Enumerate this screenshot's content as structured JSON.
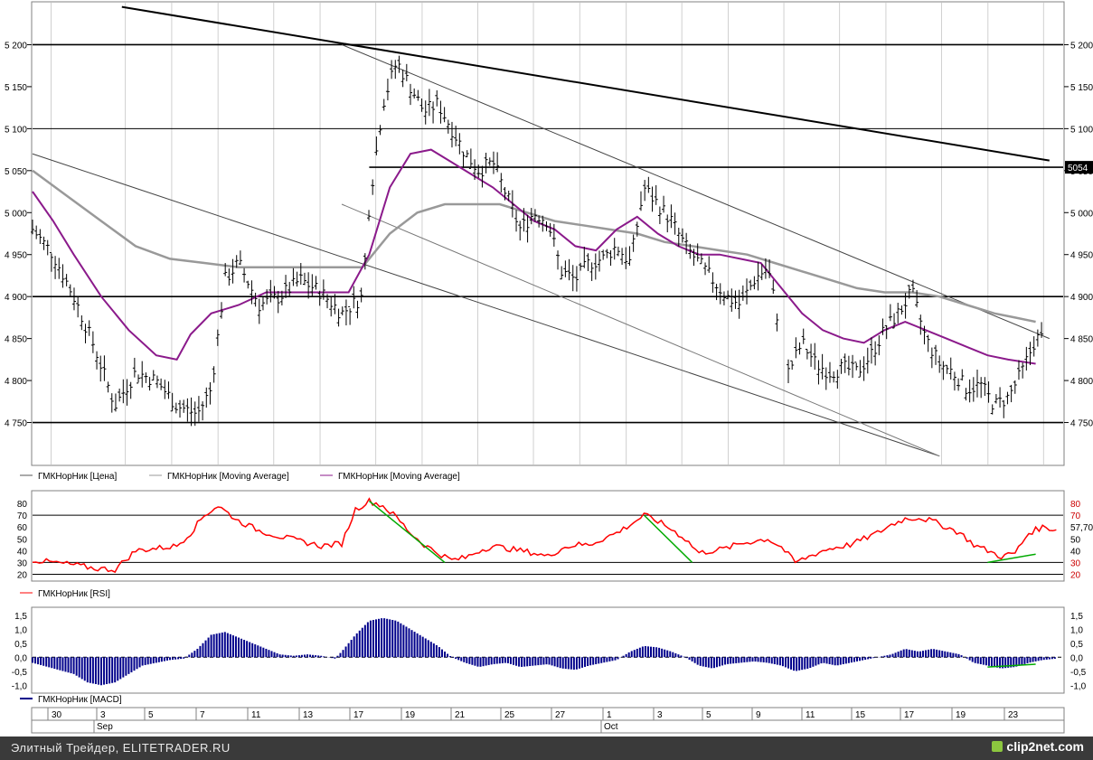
{
  "price_panel": {
    "y_ticks": [
      "5 200",
      "5 150",
      "5 100",
      "5 050",
      "5 000",
      "4 950",
      "4 900",
      "4 850",
      "4 800",
      "4 750"
    ],
    "last_value_label": "5054",
    "legend": [
      {
        "label": "ГМКНорНик [Цена]",
        "color": "#555555"
      },
      {
        "label": "ГМКНорНик [Moving Average]",
        "color": "#999999"
      },
      {
        "label": "ГМКНорНик [Moving Average]",
        "color": "#8b1a8b"
      }
    ]
  },
  "rsi_panel": {
    "y_ticks": [
      "80",
      "70",
      "60",
      "50",
      "40",
      "30",
      "20"
    ],
    "right_labels": [
      "80",
      "70",
      "57,70",
      "50",
      "40",
      "30",
      "20"
    ],
    "legend": {
      "label": "ГМКНорНик [RSI]",
      "color": "#ff0000"
    }
  },
  "macd_panel": {
    "y_ticks": [
      "1,5",
      "1,0",
      "0,5",
      "0,0",
      "-0,5",
      "-1,0"
    ],
    "legend": {
      "label": "ГМКНорНик [MACD]",
      "color": "#00008b"
    }
  },
  "x_axis": {
    "day_labels": [
      "30",
      "3",
      "5",
      "7",
      "11",
      "13",
      "17",
      "19",
      "21",
      "25",
      "27",
      "1",
      "3",
      "5",
      "9",
      "11",
      "15",
      "17",
      "19",
      "23"
    ],
    "month_labels": [
      "Sep",
      "Oct"
    ]
  },
  "footer": {
    "left_text": "Элитный Трейдер, ELITETRADER.RU",
    "right_text": "clip2net.com"
  },
  "colors": {
    "price_bars": "#000000",
    "ma_long": "#999999",
    "ma_short": "#8b1a8b",
    "rsi": "#ff0000",
    "macd_fill": "#00008b",
    "trend_green": "#00aa00"
  },
  "chart_data": [
    {
      "type": "bar",
      "subtype": "ohlc",
      "y_unit": "price",
      "ylim": [
        4700,
        5250
      ],
      "horizontal_levels": [
        5200,
        5100,
        5054,
        4900,
        4750
      ],
      "price": [
        [
          0,
          4980
        ],
        [
          3,
          4950
        ],
        [
          6,
          4900
        ],
        [
          9,
          4840
        ],
        [
          12,
          4770
        ],
        [
          15,
          4810
        ],
        [
          18,
          4800
        ],
        [
          21,
          4770
        ],
        [
          24,
          4760
        ],
        [
          26,
          4790
        ],
        [
          28,
          4920
        ],
        [
          30,
          4940
        ],
        [
          33,
          4890
        ],
        [
          36,
          4900
        ],
        [
          39,
          4920
        ],
        [
          42,
          4905
        ],
        [
          45,
          4880
        ],
        [
          48,
          4900
        ],
        [
          49,
          5010
        ],
        [
          51,
          5130
        ],
        [
          53,
          5180
        ],
        [
          55,
          5150
        ],
        [
          57,
          5120
        ],
        [
          59,
          5130
        ],
        [
          61,
          5100
        ],
        [
          63,
          5070
        ],
        [
          65,
          5050
        ],
        [
          67,
          5060
        ],
        [
          69,
          5020
        ],
        [
          71,
          4980
        ],
        [
          73,
          5000
        ],
        [
          75,
          4990
        ],
        [
          77,
          4930
        ],
        [
          79,
          4920
        ],
        [
          81,
          4940
        ],
        [
          83,
          4945
        ],
        [
          85,
          4960
        ],
        [
          87,
          4940
        ],
        [
          89,
          5030
        ],
        [
          91,
          5010
        ],
        [
          93,
          4990
        ],
        [
          95,
          4960
        ],
        [
          97,
          4940
        ],
        [
          99,
          4920
        ],
        [
          101,
          4900
        ],
        [
          103,
          4890
        ],
        [
          105,
          4920
        ],
        [
          107,
          4935
        ],
        [
          110,
          4810
        ],
        [
          112,
          4845
        ],
        [
          114,
          4820
        ],
        [
          116,
          4810
        ],
        [
          118,
          4815
        ],
        [
          120,
          4810
        ],
        [
          122,
          4830
        ],
        [
          124,
          4860
        ],
        [
          126,
          4880
        ],
        [
          128,
          4905
        ],
        [
          130,
          4850
        ],
        [
          132,
          4820
        ],
        [
          134,
          4810
        ],
        [
          136,
          4790
        ],
        [
          138,
          4795
        ],
        [
          140,
          4770
        ],
        [
          142,
          4780
        ],
        [
          144,
          4810
        ],
        [
          146,
          4850
        ]
      ],
      "ma_short": [
        [
          0,
          5025
        ],
        [
          3,
          4990
        ],
        [
          6,
          4950
        ],
        [
          10,
          4900
        ],
        [
          14,
          4860
        ],
        [
          18,
          4830
        ],
        [
          21,
          4825
        ],
        [
          23,
          4855
        ],
        [
          26,
          4880
        ],
        [
          30,
          4890
        ],
        [
          34,
          4905
        ],
        [
          38,
          4905
        ],
        [
          42,
          4905
        ],
        [
          46,
          4905
        ],
        [
          49,
          4950
        ],
        [
          52,
          5030
        ],
        [
          55,
          5070
        ],
        [
          58,
          5075
        ],
        [
          61,
          5060
        ],
        [
          64,
          5045
        ],
        [
          67,
          5030
        ],
        [
          70,
          5010
        ],
        [
          73,
          4990
        ],
        [
          76,
          4980
        ],
        [
          79,
          4960
        ],
        [
          82,
          4955
        ],
        [
          85,
          4980
        ],
        [
          88,
          4995
        ],
        [
          91,
          4975
        ],
        [
          94,
          4960
        ],
        [
          97,
          4950
        ],
        [
          100,
          4950
        ],
        [
          103,
          4945
        ],
        [
          106,
          4940
        ],
        [
          109,
          4910
        ],
        [
          112,
          4880
        ],
        [
          115,
          4860
        ],
        [
          118,
          4850
        ],
        [
          121,
          4845
        ],
        [
          124,
          4860
        ],
        [
          127,
          4870
        ],
        [
          130,
          4860
        ],
        [
          133,
          4850
        ],
        [
          136,
          4840
        ],
        [
          139,
          4830
        ],
        [
          142,
          4825
        ],
        [
          146,
          4820
        ]
      ],
      "ma_long": [
        [
          0,
          5050
        ],
        [
          5,
          5020
        ],
        [
          10,
          4990
        ],
        [
          15,
          4960
        ],
        [
          20,
          4945
        ],
        [
          25,
          4940
        ],
        [
          30,
          4935
        ],
        [
          35,
          4935
        ],
        [
          40,
          4935
        ],
        [
          45,
          4935
        ],
        [
          48,
          4935
        ],
        [
          52,
          4975
        ],
        [
          56,
          5000
        ],
        [
          60,
          5010
        ],
        [
          64,
          5010
        ],
        [
          68,
          5010
        ],
        [
          72,
          5000
        ],
        [
          76,
          4990
        ],
        [
          80,
          4985
        ],
        [
          84,
          4980
        ],
        [
          88,
          4975
        ],
        [
          92,
          4965
        ],
        [
          96,
          4960
        ],
        [
          100,
          4955
        ],
        [
          104,
          4950
        ],
        [
          108,
          4940
        ],
        [
          112,
          4930
        ],
        [
          116,
          4920
        ],
        [
          120,
          4910
        ],
        [
          124,
          4905
        ],
        [
          128,
          4905
        ],
        [
          132,
          4900
        ],
        [
          136,
          4890
        ],
        [
          140,
          4880
        ],
        [
          143,
          4875
        ],
        [
          146,
          4870
        ]
      ],
      "trendlines": [
        {
          "from": [
            13,
            5245
          ],
          "to": [
            148,
            5062
          ]
        },
        {
          "from": [
            45,
            5200
          ],
          "to": [
            148,
            4850
          ]
        },
        {
          "from": [
            0,
            5070
          ],
          "to": [
            132,
            4710
          ]
        },
        {
          "from": [
            45,
            5010
          ],
          "to": [
            132,
            4710
          ]
        }
      ]
    },
    {
      "type": "line",
      "name": "RSI",
      "ylim": [
        15,
        90
      ],
      "levels": [
        70,
        30
      ],
      "last_value": 57.7,
      "values": [
        [
          0,
          32
        ],
        [
          3,
          30
        ],
        [
          6,
          28
        ],
        [
          9,
          25
        ],
        [
          12,
          24
        ],
        [
          15,
          40
        ],
        [
          18,
          42
        ],
        [
          21,
          44
        ],
        [
          23,
          55
        ],
        [
          25,
          70
        ],
        [
          27,
          78
        ],
        [
          30,
          65
        ],
        [
          33,
          57
        ],
        [
          36,
          52
        ],
        [
          39,
          48
        ],
        [
          42,
          44
        ],
        [
          45,
          46
        ],
        [
          47,
          75
        ],
        [
          49,
          82
        ],
        [
          51,
          78
        ],
        [
          53,
          68
        ],
        [
          55,
          55
        ],
        [
          57,
          45
        ],
        [
          59,
          38
        ],
        [
          61,
          32
        ],
        [
          63,
          34
        ],
        [
          65,
          40
        ],
        [
          67,
          44
        ],
        [
          69,
          42
        ],
        [
          71,
          40
        ],
        [
          73,
          38
        ],
        [
          75,
          35
        ],
        [
          77,
          42
        ],
        [
          79,
          45
        ],
        [
          81,
          45
        ],
        [
          83,
          50
        ],
        [
          85,
          55
        ],
        [
          87,
          62
        ],
        [
          89,
          70
        ],
        [
          91,
          65
        ],
        [
          93,
          58
        ],
        [
          95,
          50
        ],
        [
          97,
          38
        ],
        [
          99,
          40
        ],
        [
          101,
          42
        ],
        [
          103,
          46
        ],
        [
          105,
          48
        ],
        [
          107,
          50
        ],
        [
          109,
          43
        ],
        [
          111,
          30
        ],
        [
          113,
          35
        ],
        [
          115,
          40
        ],
        [
          117,
          43
        ],
        [
          119,
          45
        ],
        [
          121,
          50
        ],
        [
          123,
          55
        ],
        [
          125,
          62
        ],
        [
          127,
          67
        ],
        [
          129,
          68
        ],
        [
          131,
          65
        ],
        [
          133,
          60
        ],
        [
          135,
          55
        ],
        [
          137,
          45
        ],
        [
          139,
          40
        ],
        [
          141,
          35
        ],
        [
          143,
          38
        ],
        [
          145,
          55
        ],
        [
          147,
          60
        ],
        [
          149,
          57.7
        ]
      ],
      "trendlines": [
        {
          "from": [
            49,
            82
          ],
          "to": [
            60,
            30
          ]
        },
        {
          "from": [
            89,
            70
          ],
          "to": [
            96,
            30
          ]
        },
        {
          "from": [
            139,
            30
          ],
          "to": [
            146,
            37
          ]
        }
      ]
    },
    {
      "type": "area",
      "name": "MACD",
      "ylim": [
        -1.25,
        1.75
      ],
      "values": [
        [
          0,
          -0.2
        ],
        [
          3,
          -0.4
        ],
        [
          6,
          -0.6
        ],
        [
          8,
          -0.9
        ],
        [
          10,
          -1.0
        ],
        [
          12,
          -0.9
        ],
        [
          14,
          -0.6
        ],
        [
          16,
          -0.3
        ],
        [
          18,
          -0.2
        ],
        [
          20,
          -0.1
        ],
        [
          22,
          -0.05
        ],
        [
          24,
          0.3
        ],
        [
          26,
          0.8
        ],
        [
          28,
          0.9
        ],
        [
          30,
          0.7
        ],
        [
          32,
          0.5
        ],
        [
          34,
          0.3
        ],
        [
          36,
          0.1
        ],
        [
          38,
          0.05
        ],
        [
          40,
          0.1
        ],
        [
          42,
          0.05
        ],
        [
          44,
          -0.05
        ],
        [
          45,
          0.2
        ],
        [
          47,
          0.8
        ],
        [
          49,
          1.3
        ],
        [
          51,
          1.4
        ],
        [
          53,
          1.3
        ],
        [
          55,
          1.0
        ],
        [
          57,
          0.7
        ],
        [
          59,
          0.4
        ],
        [
          61,
          0.0
        ],
        [
          63,
          -0.2
        ],
        [
          65,
          -0.35
        ],
        [
          67,
          -0.25
        ],
        [
          69,
          -0.2
        ],
        [
          71,
          -0.35
        ],
        [
          73,
          -0.3
        ],
        [
          75,
          -0.25
        ],
        [
          77,
          -0.4
        ],
        [
          79,
          -0.45
        ],
        [
          81,
          -0.3
        ],
        [
          83,
          -0.2
        ],
        [
          85,
          -0.1
        ],
        [
          87,
          0.2
        ],
        [
          89,
          0.4
        ],
        [
          91,
          0.35
        ],
        [
          93,
          0.2
        ],
        [
          95,
          0.0
        ],
        [
          97,
          -0.3
        ],
        [
          99,
          -0.4
        ],
        [
          101,
          -0.25
        ],
        [
          103,
          -0.2
        ],
        [
          105,
          -0.15
        ],
        [
          107,
          -0.2
        ],
        [
          109,
          -0.3
        ],
        [
          111,
          -0.5
        ],
        [
          113,
          -0.4
        ],
        [
          115,
          -0.2
        ],
        [
          117,
          -0.3
        ],
        [
          119,
          -0.2
        ],
        [
          121,
          -0.1
        ],
        [
          123,
          0.0
        ],
        [
          125,
          0.1
        ],
        [
          127,
          0.3
        ],
        [
          129,
          0.2
        ],
        [
          131,
          0.3
        ],
        [
          133,
          0.2
        ],
        [
          135,
          0.1
        ],
        [
          137,
          -0.2
        ],
        [
          139,
          -0.3
        ],
        [
          141,
          -0.4
        ],
        [
          143,
          -0.35
        ],
        [
          145,
          -0.2
        ],
        [
          147,
          -0.1
        ],
        [
          149,
          -0.05
        ]
      ],
      "trendlines": [
        {
          "from": [
            139,
            -0.35
          ],
          "to": [
            146,
            -0.25
          ]
        }
      ]
    }
  ]
}
